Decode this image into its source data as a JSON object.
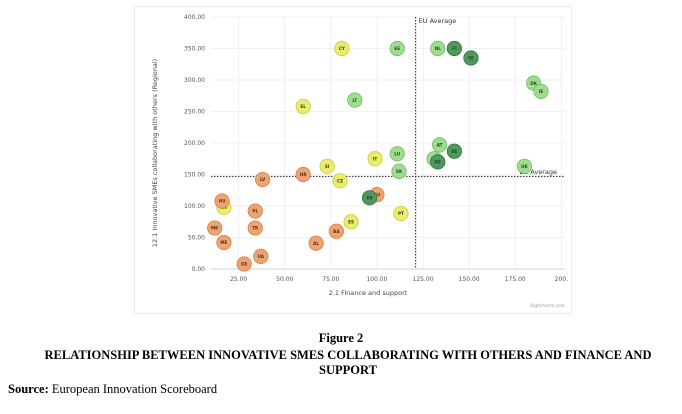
{
  "chart_data": {
    "type": "scatter",
    "title": "",
    "xlabel": "2.1 Finance and support",
    "ylabel": "12.1 Innovative SMEs collaborating with others (Regional)",
    "xlim": [
      10,
      202
    ],
    "ylim": [
      0,
      400
    ],
    "x_ticks": [
      "25.00",
      "50.00",
      "75.00",
      "100.00",
      "125.00",
      "150.00",
      "175.00",
      "200."
    ],
    "y_ticks": [
      "0.00",
      "50.00",
      "100.00",
      "150.00",
      "200.00",
      "250.00",
      "300.00",
      "350.00",
      "400.00"
    ],
    "reference_lines": [
      {
        "axis": "x",
        "value": 121,
        "label": "EU Average"
      },
      {
        "axis": "y",
        "value": 147,
        "label": "EU Average"
      }
    ],
    "grid": true,
    "credit": "Highcharts.com",
    "colors": {
      "orange": "#f0a36e",
      "yellow": "#eaec6a",
      "light_green": "#9edd8e",
      "dark_green": "#4e9a5a"
    },
    "points": [
      {
        "label": "CY",
        "x": 81,
        "y": 350,
        "color": "yellow"
      },
      {
        "label": "EE",
        "x": 111,
        "y": 350,
        "color": "light_green"
      },
      {
        "label": "NL",
        "x": 133,
        "y": 350,
        "color": "light_green"
      },
      {
        "label": "FI",
        "x": 142,
        "y": 350,
        "color": "dark_green"
      },
      {
        "label": "SE",
        "x": 151,
        "y": 335,
        "color": "dark_green"
      },
      {
        "label": "DK",
        "x": 185,
        "y": 295,
        "color": "light_green"
      },
      {
        "label": "IE",
        "x": 189,
        "y": 282,
        "color": "light_green"
      },
      {
        "label": "EL",
        "x": 60,
        "y": 258,
        "color": "yellow"
      },
      {
        "label": "LT",
        "x": 88,
        "y": 268,
        "color": "light_green"
      },
      {
        "label": "AT",
        "x": 134,
        "y": 197,
        "color": "light_green"
      },
      {
        "label": "BE",
        "x": 142,
        "y": 187,
        "color": "dark_green"
      },
      {
        "label": "LU",
        "x": 111,
        "y": 183,
        "color": "light_green"
      },
      {
        "label": "IT",
        "x": 99,
        "y": 175,
        "color": "yellow"
      },
      {
        "label": "FR",
        "x": 131,
        "y": 175,
        "color": "light_green"
      },
      {
        "label": "DE",
        "x": 133,
        "y": 170,
        "color": "dark_green"
      },
      {
        "label": "UK",
        "x": 180,
        "y": 163,
        "color": "light_green"
      },
      {
        "label": "SI",
        "x": 73,
        "y": 163,
        "color": "yellow"
      },
      {
        "label": "HR",
        "x": 60,
        "y": 150,
        "color": "orange"
      },
      {
        "label": "SK",
        "x": 112,
        "y": 155,
        "color": "light_green"
      },
      {
        "label": "CZ",
        "x": 80,
        "y": 140,
        "color": "yellow"
      },
      {
        "label": "LV",
        "x": 38,
        "y": 142,
        "color": "orange"
      },
      {
        "label": "MT",
        "x": 17,
        "y": 98,
        "color": "yellow"
      },
      {
        "label": "HU",
        "x": 16,
        "y": 108,
        "color": "orange"
      },
      {
        "label": "PL",
        "x": 34,
        "y": 92,
        "color": "orange"
      },
      {
        "label": "ES",
        "x": 86,
        "y": 75,
        "color": "yellow"
      },
      {
        "label": "PT",
        "x": 113,
        "y": 88,
        "color": "yellow"
      },
      {
        "label": "NO",
        "x": 100,
        "y": 118,
        "color": "orange"
      },
      {
        "label": "RS",
        "x": 96,
        "y": 113,
        "color": "dark_green"
      },
      {
        "label": "MK",
        "x": 12,
        "y": 65,
        "color": "orange"
      },
      {
        "label": "TR",
        "x": 34,
        "y": 65,
        "color": "orange"
      },
      {
        "label": "BA",
        "x": 78,
        "y": 60,
        "color": "orange"
      },
      {
        "label": "ME",
        "x": 17,
        "y": 42,
        "color": "orange"
      },
      {
        "label": "AL",
        "x": 67,
        "y": 41,
        "color": "orange"
      },
      {
        "label": "UA",
        "x": 37,
        "y": 20,
        "color": "orange"
      },
      {
        "label": "GE",
        "x": 28,
        "y": 8,
        "color": "orange"
      }
    ]
  },
  "caption": {
    "figure_label": "Figure 2",
    "heading": "RELATIONSHIP BETWEEN INNOVATIVE SMES COLLABORATING WITH OTHERS AND FINANCE AND SUPPORT",
    "source_label": "Source:",
    "source_text": " European Innovation Scoreboard"
  }
}
